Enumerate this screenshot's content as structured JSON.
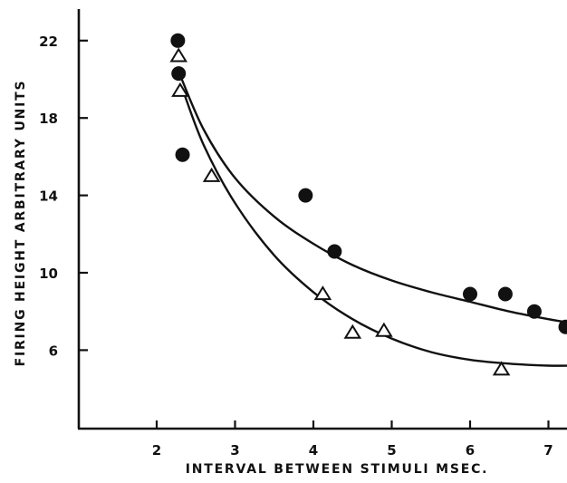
{
  "chart_data": {
    "type": "scatter",
    "title": "",
    "xlabel": "INTERVAL BETWEEN STIMULI MSEC.",
    "ylabel": "FIRING HEIGHT ARBITRARY UNITS",
    "xlim": [
      1,
      7.3
    ],
    "ylim": [
      4.0,
      26.5
    ],
    "x_ticks": [
      2,
      3,
      4,
      5,
      6,
      7
    ],
    "y_ticks": [
      6,
      10,
      14,
      18,
      22
    ],
    "grid": false,
    "legend": "none",
    "series": [
      {
        "marker": "filled-circle",
        "points": [
          [
            2.27,
            22.0
          ],
          [
            2.28,
            20.3
          ],
          [
            2.33,
            16.1
          ],
          [
            3.9,
            14.0
          ],
          [
            4.27,
            11.1
          ],
          [
            6.0,
            8.9
          ],
          [
            6.45,
            8.9
          ],
          [
            6.82,
            8.0
          ],
          [
            7.22,
            7.2
          ]
        ],
        "fit_curve": [
          [
            2.3,
            20.2
          ],
          [
            2.6,
            17.4
          ],
          [
            3.0,
            14.9
          ],
          [
            3.5,
            12.9
          ],
          [
            4.0,
            11.5
          ],
          [
            4.5,
            10.4
          ],
          [
            5.0,
            9.6
          ],
          [
            5.5,
            9.0
          ],
          [
            6.0,
            8.5
          ],
          [
            6.5,
            8.0
          ],
          [
            7.0,
            7.6
          ],
          [
            7.3,
            7.4
          ]
        ]
      },
      {
        "marker": "open-triangle",
        "points": [
          [
            2.28,
            21.2
          ],
          [
            2.3,
            19.4
          ],
          [
            2.7,
            15.0
          ],
          [
            4.12,
            8.9
          ],
          [
            4.5,
            6.9
          ],
          [
            4.9,
            7.0
          ],
          [
            6.4,
            5.0
          ]
        ],
        "fit_curve": [
          [
            2.33,
            19.5
          ],
          [
            2.6,
            16.6
          ],
          [
            3.0,
            13.6
          ],
          [
            3.5,
            10.9
          ],
          [
            4.0,
            9.0
          ],
          [
            4.5,
            7.6
          ],
          [
            5.0,
            6.6
          ],
          [
            5.5,
            5.9
          ],
          [
            6.0,
            5.5
          ],
          [
            6.5,
            5.3
          ],
          [
            7.0,
            5.2
          ],
          [
            7.3,
            5.2
          ]
        ]
      }
    ]
  }
}
